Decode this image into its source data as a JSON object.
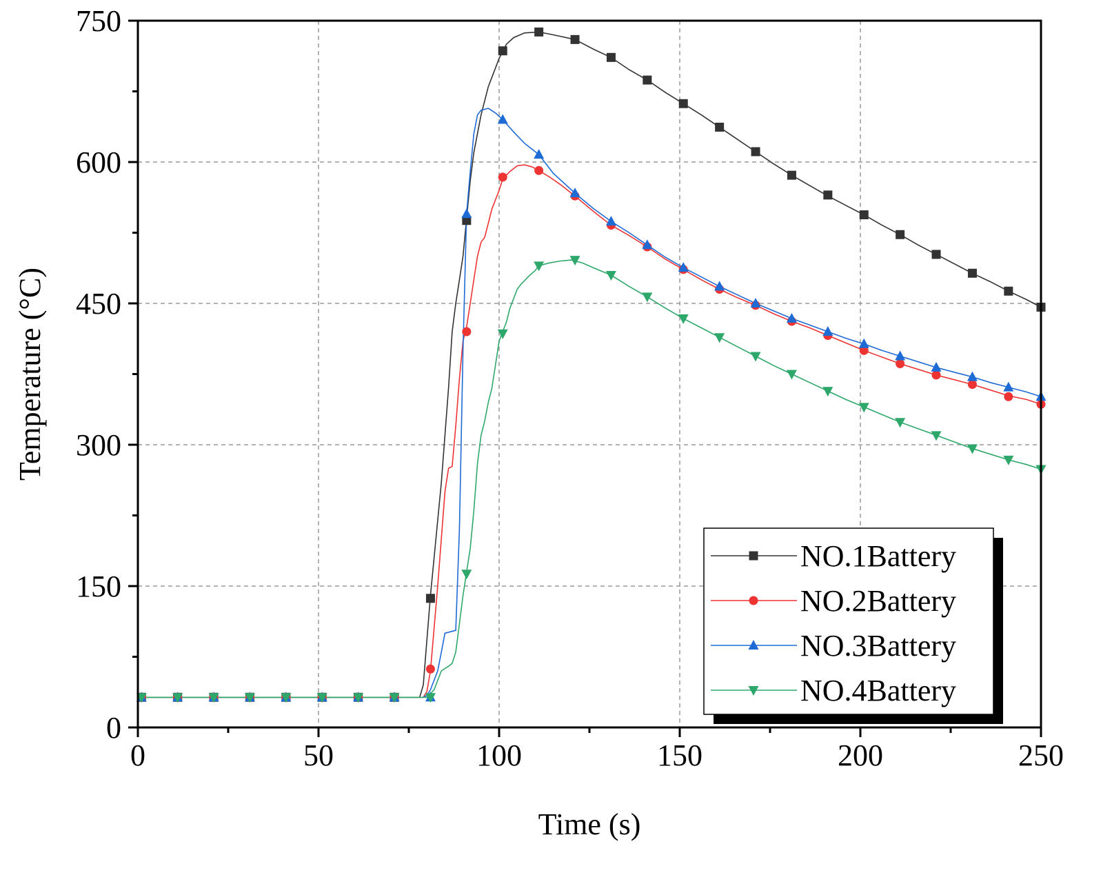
{
  "chart_data": {
    "type": "line",
    "title": "",
    "xlabel": "Time (s)",
    "ylabel": "Temperature (°C)",
    "xlim": [
      0,
      250
    ],
    "ylim": [
      0,
      750
    ],
    "x_ticks": [
      "0",
      "50",
      "100",
      "150",
      "200",
      "250"
    ],
    "y_ticks": [
      "0",
      "150",
      "300",
      "450",
      "600",
      "750"
    ],
    "x_tick_values": [
      0,
      50,
      100,
      150,
      200,
      250
    ],
    "y_tick_values": [
      0,
      150,
      300,
      450,
      600,
      750
    ],
    "grid": true,
    "legend_position": "bottom-right",
    "series": [
      {
        "name": "NO.1Battery",
        "color": "#333333",
        "marker": "square",
        "line": [
          [
            0,
            32
          ],
          [
            78,
            32
          ],
          [
            79,
            45
          ],
          [
            81,
            140
          ],
          [
            84,
            260
          ],
          [
            86,
            360
          ],
          [
            87,
            420
          ],
          [
            88,
            450
          ],
          [
            89,
            475
          ],
          [
            90,
            500
          ],
          [
            91,
            540
          ],
          [
            92,
            580
          ],
          [
            93,
            610
          ],
          [
            95,
            650
          ],
          [
            97,
            680
          ],
          [
            99,
            700
          ],
          [
            100,
            710
          ],
          [
            102,
            725
          ],
          [
            104,
            732
          ],
          [
            107,
            737
          ],
          [
            111,
            738
          ],
          [
            115,
            735
          ],
          [
            121,
            730
          ],
          [
            126,
            720
          ],
          [
            131,
            711
          ],
          [
            136,
            698
          ],
          [
            141,
            687
          ],
          [
            146,
            674
          ],
          [
            151,
            662
          ],
          [
            156,
            650
          ],
          [
            161,
            637
          ],
          [
            166,
            624
          ],
          [
            171,
            611
          ],
          [
            176,
            598
          ],
          [
            181,
            586
          ],
          [
            186,
            575
          ],
          [
            191,
            564
          ],
          [
            196,
            554
          ],
          [
            201,
            544
          ],
          [
            206,
            533
          ],
          [
            211,
            523
          ],
          [
            216,
            512
          ],
          [
            221,
            502
          ],
          [
            226,
            492
          ],
          [
            231,
            482
          ],
          [
            236,
            473
          ],
          [
            241,
            463
          ],
          [
            246,
            454
          ],
          [
            250,
            446
          ]
        ],
        "markers": [
          [
            1,
            32
          ],
          [
            11,
            32
          ],
          [
            21,
            32
          ],
          [
            31,
            32
          ],
          [
            41,
            32
          ],
          [
            51,
            32
          ],
          [
            61,
            32
          ],
          [
            71,
            32
          ],
          [
            81,
            137
          ],
          [
            91,
            538
          ],
          [
            101,
            718
          ],
          [
            111,
            738
          ],
          [
            121,
            730
          ],
          [
            131,
            711
          ],
          [
            141,
            687
          ],
          [
            151,
            662
          ],
          [
            161,
            637
          ],
          [
            171,
            611
          ],
          [
            181,
            586
          ],
          [
            191,
            565
          ],
          [
            201,
            544
          ],
          [
            211,
            523
          ],
          [
            221,
            502
          ],
          [
            231,
            482
          ],
          [
            241,
            463
          ],
          [
            251,
            446
          ]
        ]
      },
      {
        "name": "NO.2Battery",
        "color": "#ee3333",
        "marker": "circle",
        "line": [
          [
            0,
            32
          ],
          [
            79,
            32
          ],
          [
            80,
            38
          ],
          [
            81,
            60
          ],
          [
            83,
            150
          ],
          [
            85,
            250
          ],
          [
            86,
            275
          ],
          [
            87,
            277
          ],
          [
            88,
            320
          ],
          [
            89,
            370
          ],
          [
            90,
            410
          ],
          [
            91,
            425
          ],
          [
            92,
            450
          ],
          [
            93,
            475
          ],
          [
            94,
            500
          ],
          [
            95,
            515
          ],
          [
            96,
            520
          ],
          [
            97,
            535
          ],
          [
            98,
            550
          ],
          [
            100,
            570
          ],
          [
            101,
            582
          ],
          [
            103,
            590
          ],
          [
            105,
            596
          ],
          [
            107,
            597
          ],
          [
            109,
            595
          ],
          [
            111,
            591
          ],
          [
            114,
            584
          ],
          [
            117,
            576
          ],
          [
            121,
            564
          ],
          [
            126,
            548
          ],
          [
            131,
            533
          ],
          [
            136,
            522
          ],
          [
            141,
            510
          ],
          [
            146,
            497
          ],
          [
            151,
            486
          ],
          [
            156,
            475
          ],
          [
            161,
            465
          ],
          [
            166,
            456
          ],
          [
            171,
            448
          ],
          [
            176,
            439
          ],
          [
            181,
            431
          ],
          [
            186,
            424
          ],
          [
            191,
            416
          ],
          [
            196,
            408
          ],
          [
            201,
            400
          ],
          [
            206,
            393
          ],
          [
            211,
            386
          ],
          [
            216,
            380
          ],
          [
            221,
            374
          ],
          [
            226,
            369
          ],
          [
            231,
            364
          ],
          [
            236,
            358
          ],
          [
            241,
            352
          ],
          [
            246,
            348
          ],
          [
            250,
            343
          ]
        ],
        "markers": [
          [
            1,
            32
          ],
          [
            11,
            32
          ],
          [
            21,
            32
          ],
          [
            31,
            32
          ],
          [
            41,
            32
          ],
          [
            51,
            32
          ],
          [
            61,
            32
          ],
          [
            71,
            32
          ],
          [
            81,
            62
          ],
          [
            91,
            420
          ],
          [
            101,
            584
          ],
          [
            111,
            591
          ],
          [
            121,
            564
          ],
          [
            131,
            533
          ],
          [
            141,
            510
          ],
          [
            151,
            486
          ],
          [
            161,
            465
          ],
          [
            171,
            448
          ],
          [
            181,
            431
          ],
          [
            191,
            416
          ],
          [
            201,
            400
          ],
          [
            211,
            386
          ],
          [
            221,
            374
          ],
          [
            231,
            364
          ],
          [
            241,
            351
          ],
          [
            251,
            343
          ]
        ]
      },
      {
        "name": "NO.3Battery",
        "color": "#1e6bd6",
        "marker": "triangle-up",
        "line": [
          [
            0,
            32
          ],
          [
            79,
            32
          ],
          [
            80,
            34
          ],
          [
            81,
            40
          ],
          [
            83,
            60
          ],
          [
            84,
            80
          ],
          [
            85,
            100
          ],
          [
            88,
            103
          ],
          [
            89,
            210
          ],
          [
            90,
            400
          ],
          [
            91,
            545
          ],
          [
            92,
            590
          ],
          [
            93,
            630
          ],
          [
            94,
            650
          ],
          [
            95,
            655
          ],
          [
            97,
            657
          ],
          [
            99,
            652
          ],
          [
            101,
            645
          ],
          [
            104,
            632
          ],
          [
            107,
            620
          ],
          [
            111,
            608
          ],
          [
            115,
            588
          ],
          [
            121,
            567
          ],
          [
            126,
            551
          ],
          [
            131,
            537
          ],
          [
            136,
            525
          ],
          [
            141,
            512
          ],
          [
            146,
            499
          ],
          [
            151,
            488
          ],
          [
            156,
            478
          ],
          [
            161,
            468
          ],
          [
            166,
            459
          ],
          [
            171,
            450
          ],
          [
            176,
            442
          ],
          [
            181,
            434
          ],
          [
            186,
            427
          ],
          [
            191,
            420
          ],
          [
            196,
            413
          ],
          [
            201,
            407
          ],
          [
            206,
            400
          ],
          [
            211,
            394
          ],
          [
            216,
            388
          ],
          [
            221,
            382
          ],
          [
            226,
            377
          ],
          [
            231,
            372
          ],
          [
            236,
            366
          ],
          [
            241,
            361
          ],
          [
            246,
            356
          ],
          [
            250,
            351
          ]
        ],
        "markers": [
          [
            1,
            32
          ],
          [
            11,
            32
          ],
          [
            21,
            32
          ],
          [
            31,
            32
          ],
          [
            41,
            32
          ],
          [
            51,
            32
          ],
          [
            61,
            32
          ],
          [
            71,
            32
          ],
          [
            81,
            32
          ],
          [
            91,
            545
          ],
          [
            101,
            645
          ],
          [
            111,
            608
          ],
          [
            121,
            567
          ],
          [
            131,
            537
          ],
          [
            141,
            512
          ],
          [
            151,
            488
          ],
          [
            161,
            468
          ],
          [
            171,
            450
          ],
          [
            181,
            434
          ],
          [
            191,
            420
          ],
          [
            201,
            407
          ],
          [
            211,
            394
          ],
          [
            221,
            382
          ],
          [
            231,
            372
          ],
          [
            241,
            361
          ],
          [
            251,
            351
          ]
        ]
      },
      {
        "name": "NO.4Battery",
        "color": "#2ea86a",
        "marker": "triangle-down",
        "line": [
          [
            0,
            32
          ],
          [
            80,
            32
          ],
          [
            82,
            40
          ],
          [
            84,
            60
          ],
          [
            86,
            65
          ],
          [
            87,
            68
          ],
          [
            88,
            80
          ],
          [
            89,
            110
          ],
          [
            90,
            140
          ],
          [
            91,
            165
          ],
          [
            92,
            190
          ],
          [
            93,
            230
          ],
          [
            94,
            280
          ],
          [
            95,
            310
          ],
          [
            96,
            325
          ],
          [
            97,
            345
          ],
          [
            98,
            360
          ],
          [
            99,
            385
          ],
          [
            100,
            410
          ],
          [
            101,
            420
          ],
          [
            102,
            430
          ],
          [
            103,
            445
          ],
          [
            104,
            455
          ],
          [
            105,
            465
          ],
          [
            106,
            470
          ],
          [
            108,
            478
          ],
          [
            110,
            485
          ],
          [
            111,
            490
          ],
          [
            114,
            493
          ],
          [
            117,
            495
          ],
          [
            120,
            496
          ],
          [
            123,
            493
          ],
          [
            126,
            488
          ],
          [
            131,
            480
          ],
          [
            136,
            468
          ],
          [
            141,
            457
          ],
          [
            146,
            445
          ],
          [
            151,
            434
          ],
          [
            156,
            424
          ],
          [
            161,
            414
          ],
          [
            166,
            404
          ],
          [
            171,
            394
          ],
          [
            176,
            384
          ],
          [
            181,
            375
          ],
          [
            186,
            366
          ],
          [
            191,
            357
          ],
          [
            196,
            348
          ],
          [
            201,
            340
          ],
          [
            206,
            332
          ],
          [
            211,
            324
          ],
          [
            216,
            317
          ],
          [
            221,
            310
          ],
          [
            226,
            303
          ],
          [
            231,
            296
          ],
          [
            236,
            290
          ],
          [
            241,
            284
          ],
          [
            246,
            279
          ],
          [
            250,
            274
          ]
        ],
        "markers": [
          [
            1,
            32
          ],
          [
            11,
            32
          ],
          [
            21,
            32
          ],
          [
            31,
            32
          ],
          [
            41,
            32
          ],
          [
            51,
            32
          ],
          [
            61,
            32
          ],
          [
            71,
            32
          ],
          [
            81,
            32
          ],
          [
            91,
            163
          ],
          [
            101,
            418
          ],
          [
            111,
            490
          ],
          [
            121,
            496
          ],
          [
            131,
            480
          ],
          [
            141,
            457
          ],
          [
            151,
            434
          ],
          [
            161,
            414
          ],
          [
            171,
            394
          ],
          [
            181,
            375
          ],
          [
            191,
            357
          ],
          [
            201,
            340
          ],
          [
            211,
            324
          ],
          [
            221,
            310
          ],
          [
            231,
            296
          ],
          [
            241,
            284
          ],
          [
            251,
            274
          ]
        ]
      }
    ]
  }
}
